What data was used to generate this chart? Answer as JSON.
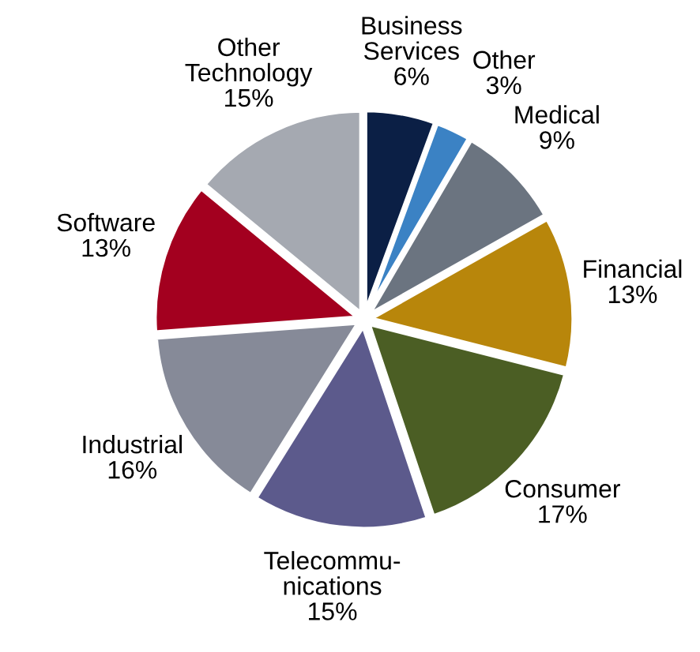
{
  "chart_data": {
    "type": "pie",
    "categories": [
      "Business\nServices",
      "Other",
      "Medical",
      "Financial",
      "Consumer",
      "Telecommu-\nnications",
      "Industrial",
      "Software",
      "Other\nTechnology"
    ],
    "values": [
      6,
      3,
      9,
      13,
      17,
      15,
      16,
      13,
      15
    ],
    "value_labels": [
      "6%",
      "3%",
      "9%",
      "13%",
      "17%",
      "15%",
      "16%",
      "13%",
      "15%"
    ],
    "colors": [
      "#0b1f45",
      "#3b82c4",
      "#6b7480",
      "#b8860b",
      "#4b5e24",
      "#5c5a8c",
      "#868a98",
      "#a3001f",
      "#a5a9b1"
    ],
    "legend": false
  }
}
